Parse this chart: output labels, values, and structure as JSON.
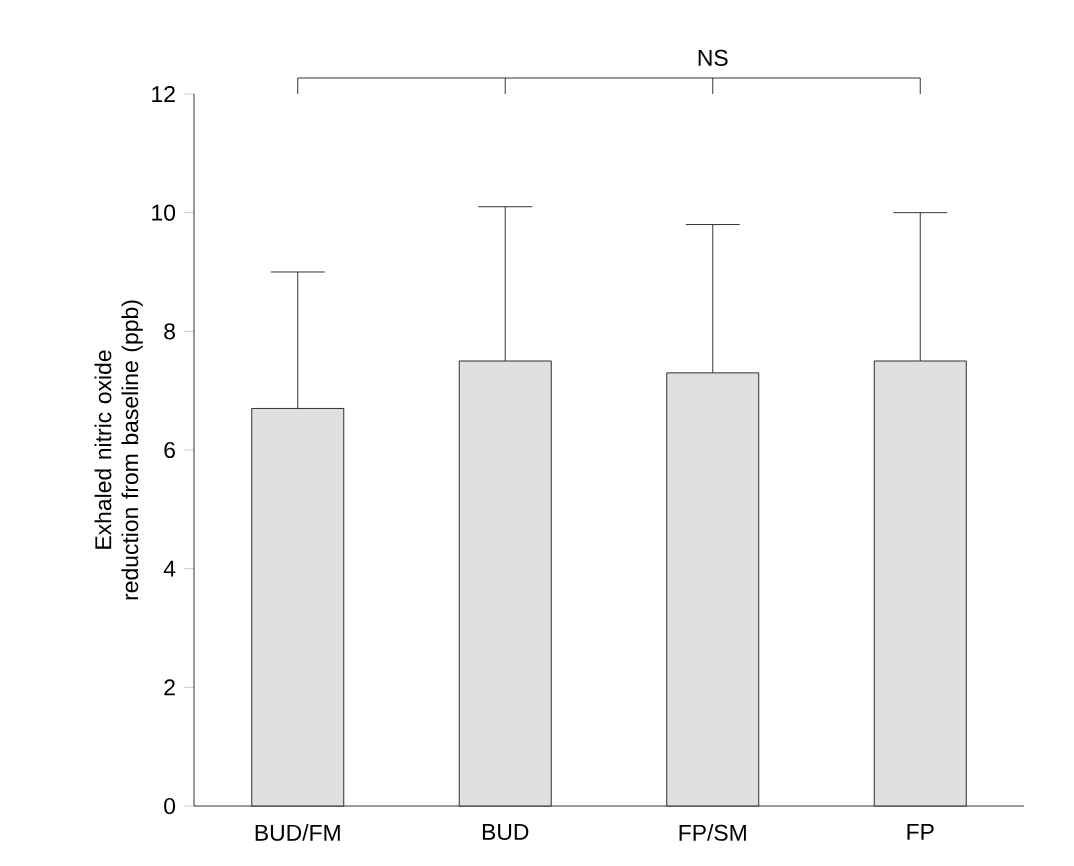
{
  "chart_data": {
    "type": "bar",
    "categories": [
      "BUD/FM",
      "BUD",
      "FP/SM",
      "FP"
    ],
    "values": [
      6.7,
      7.5,
      7.3,
      7.5
    ],
    "errors": [
      [
        6.7,
        9.0
      ],
      [
        7.5,
        10.1
      ],
      [
        7.3,
        9.8
      ],
      [
        7.5,
        10.0
      ]
    ],
    "color": "#e0e0e0",
    "ylabel": "Exhaled nitric oxide reduction from baseline (ppb)",
    "ylim": [
      0,
      12
    ],
    "yticks": [
      0,
      2,
      4,
      6,
      8,
      10,
      12
    ],
    "annotations": [
      "NS"
    ],
    "grid": false
  }
}
